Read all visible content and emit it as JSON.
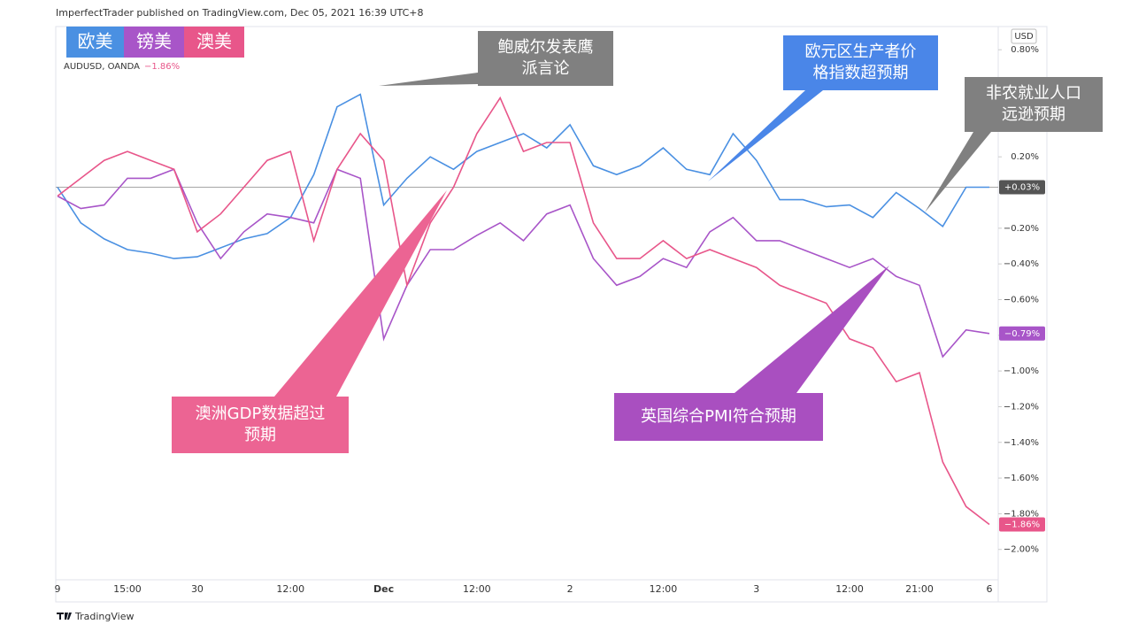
{
  "header": "ImperfectTrader published on TradingView.com, Dec 05, 2021 16:39 UTC+8",
  "footer": "TradingView",
  "chart_data": {
    "type": "line",
    "symbol": "AUDUSD, OANDA",
    "symbol_change": "−1.86%",
    "y_unit_label": "USD",
    "categories": [
      "9",
      null,
      null,
      "15:00",
      null,
      null,
      "30",
      null,
      null,
      null,
      "12:00",
      null,
      null,
      null,
      "Dec",
      null,
      null,
      null,
      "12:00",
      null,
      null,
      null,
      "2",
      null,
      null,
      null,
      "12:00",
      null,
      null,
      null,
      "3",
      null,
      null,
      null,
      "12:00",
      null,
      null,
      "21:00",
      null,
      null,
      "6"
    ],
    "ylim": [
      -2.17,
      0.93
    ],
    "yticks": [
      {
        "value": 0.8,
        "label": "0.80%"
      },
      {
        "value": 0.2,
        "label": "0.20%"
      },
      {
        "value": -0.2,
        "label": "−0.20%"
      },
      {
        "value": -0.4,
        "label": "−0.40%"
      },
      {
        "value": -0.6,
        "label": "−0.60%"
      },
      {
        "value": -0.8,
        "label": "−0.80%"
      },
      {
        "value": -1.0,
        "label": "−1.00%"
      },
      {
        "value": -1.2,
        "label": "−1.20%"
      },
      {
        "value": -1.4,
        "label": "−1.40%"
      },
      {
        "value": -1.6,
        "label": "−1.60%"
      },
      {
        "value": -1.8,
        "label": "−1.80%"
      },
      {
        "value": -2.0,
        "label": "−2.00%"
      }
    ],
    "series": [
      {
        "name": "欧美",
        "color": "#4a90e2",
        "last_value_label": "+0.03%",
        "last_label_color": "#555555",
        "values": [
          0.03,
          -0.17,
          -0.26,
          -0.32,
          -0.34,
          -0.37,
          -0.36,
          -0.31,
          -0.26,
          -0.23,
          -0.14,
          0.1,
          0.48,
          0.55,
          -0.07,
          0.08,
          0.2,
          0.13,
          0.23,
          0.28,
          0.33,
          0.25,
          0.38,
          0.15,
          0.1,
          0.15,
          0.25,
          0.13,
          0.1,
          0.33,
          0.18,
          -0.04,
          -0.04,
          -0.08,
          -0.07,
          -0.14,
          0.0,
          -0.09,
          -0.19,
          0.03,
          0.03
        ]
      },
      {
        "name": "镑美",
        "color": "#a855c8",
        "last_value_label": "−0.79%",
        "last_label_color": "#a855c8",
        "values": [
          -0.02,
          -0.09,
          -0.07,
          0.08,
          0.08,
          0.13,
          -0.17,
          -0.37,
          -0.22,
          -0.12,
          -0.14,
          -0.17,
          0.13,
          0.08,
          -0.82,
          -0.52,
          -0.32,
          -0.32,
          -0.24,
          -0.17,
          -0.27,
          -0.12,
          -0.07,
          -0.37,
          -0.52,
          -0.47,
          -0.37,
          -0.42,
          -0.22,
          -0.14,
          -0.27,
          -0.27,
          -0.32,
          -0.37,
          -0.42,
          -0.37,
          -0.47,
          -0.52,
          -0.92,
          -0.77,
          -0.79
        ]
      },
      {
        "name": "澳美",
        "color": "#e8568a",
        "last_value_label": "−1.86%",
        "last_label_color": "#e8568a",
        "values": [
          -0.02,
          0.08,
          0.18,
          0.23,
          0.18,
          0.13,
          -0.22,
          -0.12,
          0.03,
          0.18,
          0.23,
          -0.27,
          0.13,
          0.33,
          0.18,
          -0.52,
          -0.17,
          0.03,
          0.33,
          0.53,
          0.23,
          0.28,
          0.28,
          -0.17,
          -0.37,
          -0.37,
          -0.27,
          -0.37,
          -0.32,
          -0.37,
          -0.42,
          -0.52,
          -0.57,
          -0.62,
          -0.82,
          -0.87,
          -1.06,
          -1.01,
          -1.51,
          -1.76,
          -1.86
        ]
      }
    ],
    "annotations": [
      {
        "lines": [
          "鲍威尔发表鹰",
          "派言论"
        ]
      },
      {
        "lines": [
          "欧元区生产者价",
          "格指数超预期"
        ]
      },
      {
        "lines": [
          "非农就业人口",
          "远逊预期"
        ]
      },
      {
        "lines": [
          "澳洲GDP数据超过",
          "预期"
        ]
      },
      {
        "lines": [
          "英国综合PMI符合预期"
        ]
      }
    ]
  }
}
